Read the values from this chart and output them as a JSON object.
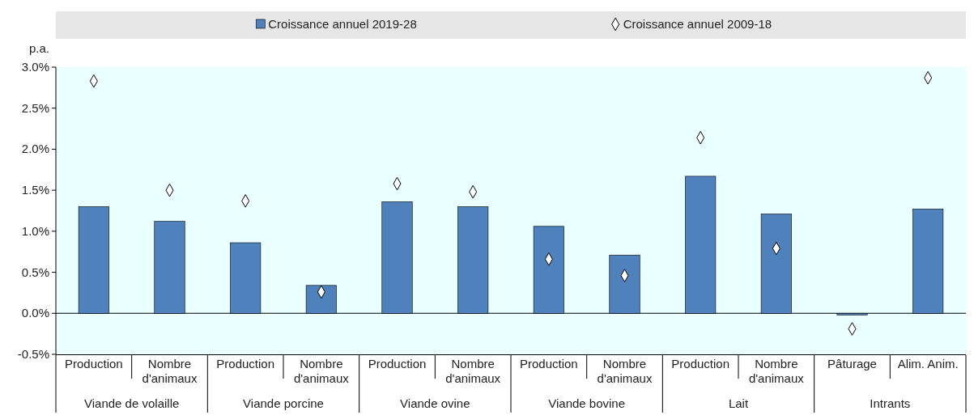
{
  "chart_data": {
    "type": "bar",
    "ylabel": "p.a.",
    "categories": [
      "Production",
      "Nombre d'animaux",
      "Production",
      "Nombre d'animaux",
      "Production",
      "Nombre d'animaux",
      "Production",
      "Nombre d'animaux",
      "Production",
      "Nombre d'animaux",
      "Pâturage",
      "Alim. Anim."
    ],
    "series": [
      {
        "name": "Croissance annuel 2019-28",
        "color": "#4f81bd",
        "values": [
          1.3,
          1.12,
          0.86,
          0.34,
          1.36,
          1.3,
          1.06,
          0.71,
          1.67,
          1.21,
          -0.02,
          1.27
        ]
      },
      {
        "name": "Croissance annuel 2009-18",
        "type": "scatter",
        "marker": "diamond",
        "color": "#ffffff",
        "values": [
          2.83,
          1.5,
          1.37,
          0.26,
          1.58,
          1.48,
          0.66,
          0.46,
          2.14,
          0.79,
          -0.19,
          2.87
        ]
      }
    ],
    "annotations": [
      "Viande de volaille",
      "Viande porcine",
      "Viande ovine",
      "Viande bovine",
      "Lait",
      "Intrants"
    ],
    "ylim": [
      -0.5,
      3.0
    ],
    "yticks": [
      {
        "value": -0.5,
        "label": "-0.5%"
      },
      {
        "value": 0,
        "label": "0.0%"
      },
      {
        "value": 0.5,
        "label": "0.5%"
      },
      {
        "value": 1,
        "label": "1.0%"
      },
      {
        "value": 1.5,
        "label": "1.5%"
      },
      {
        "value": 2,
        "label": "2.0%"
      },
      {
        "value": 2.5,
        "label": "2.5%"
      },
      {
        "value": 3,
        "label": "3.0%"
      }
    ],
    "grid": false,
    "legend": "top"
  }
}
